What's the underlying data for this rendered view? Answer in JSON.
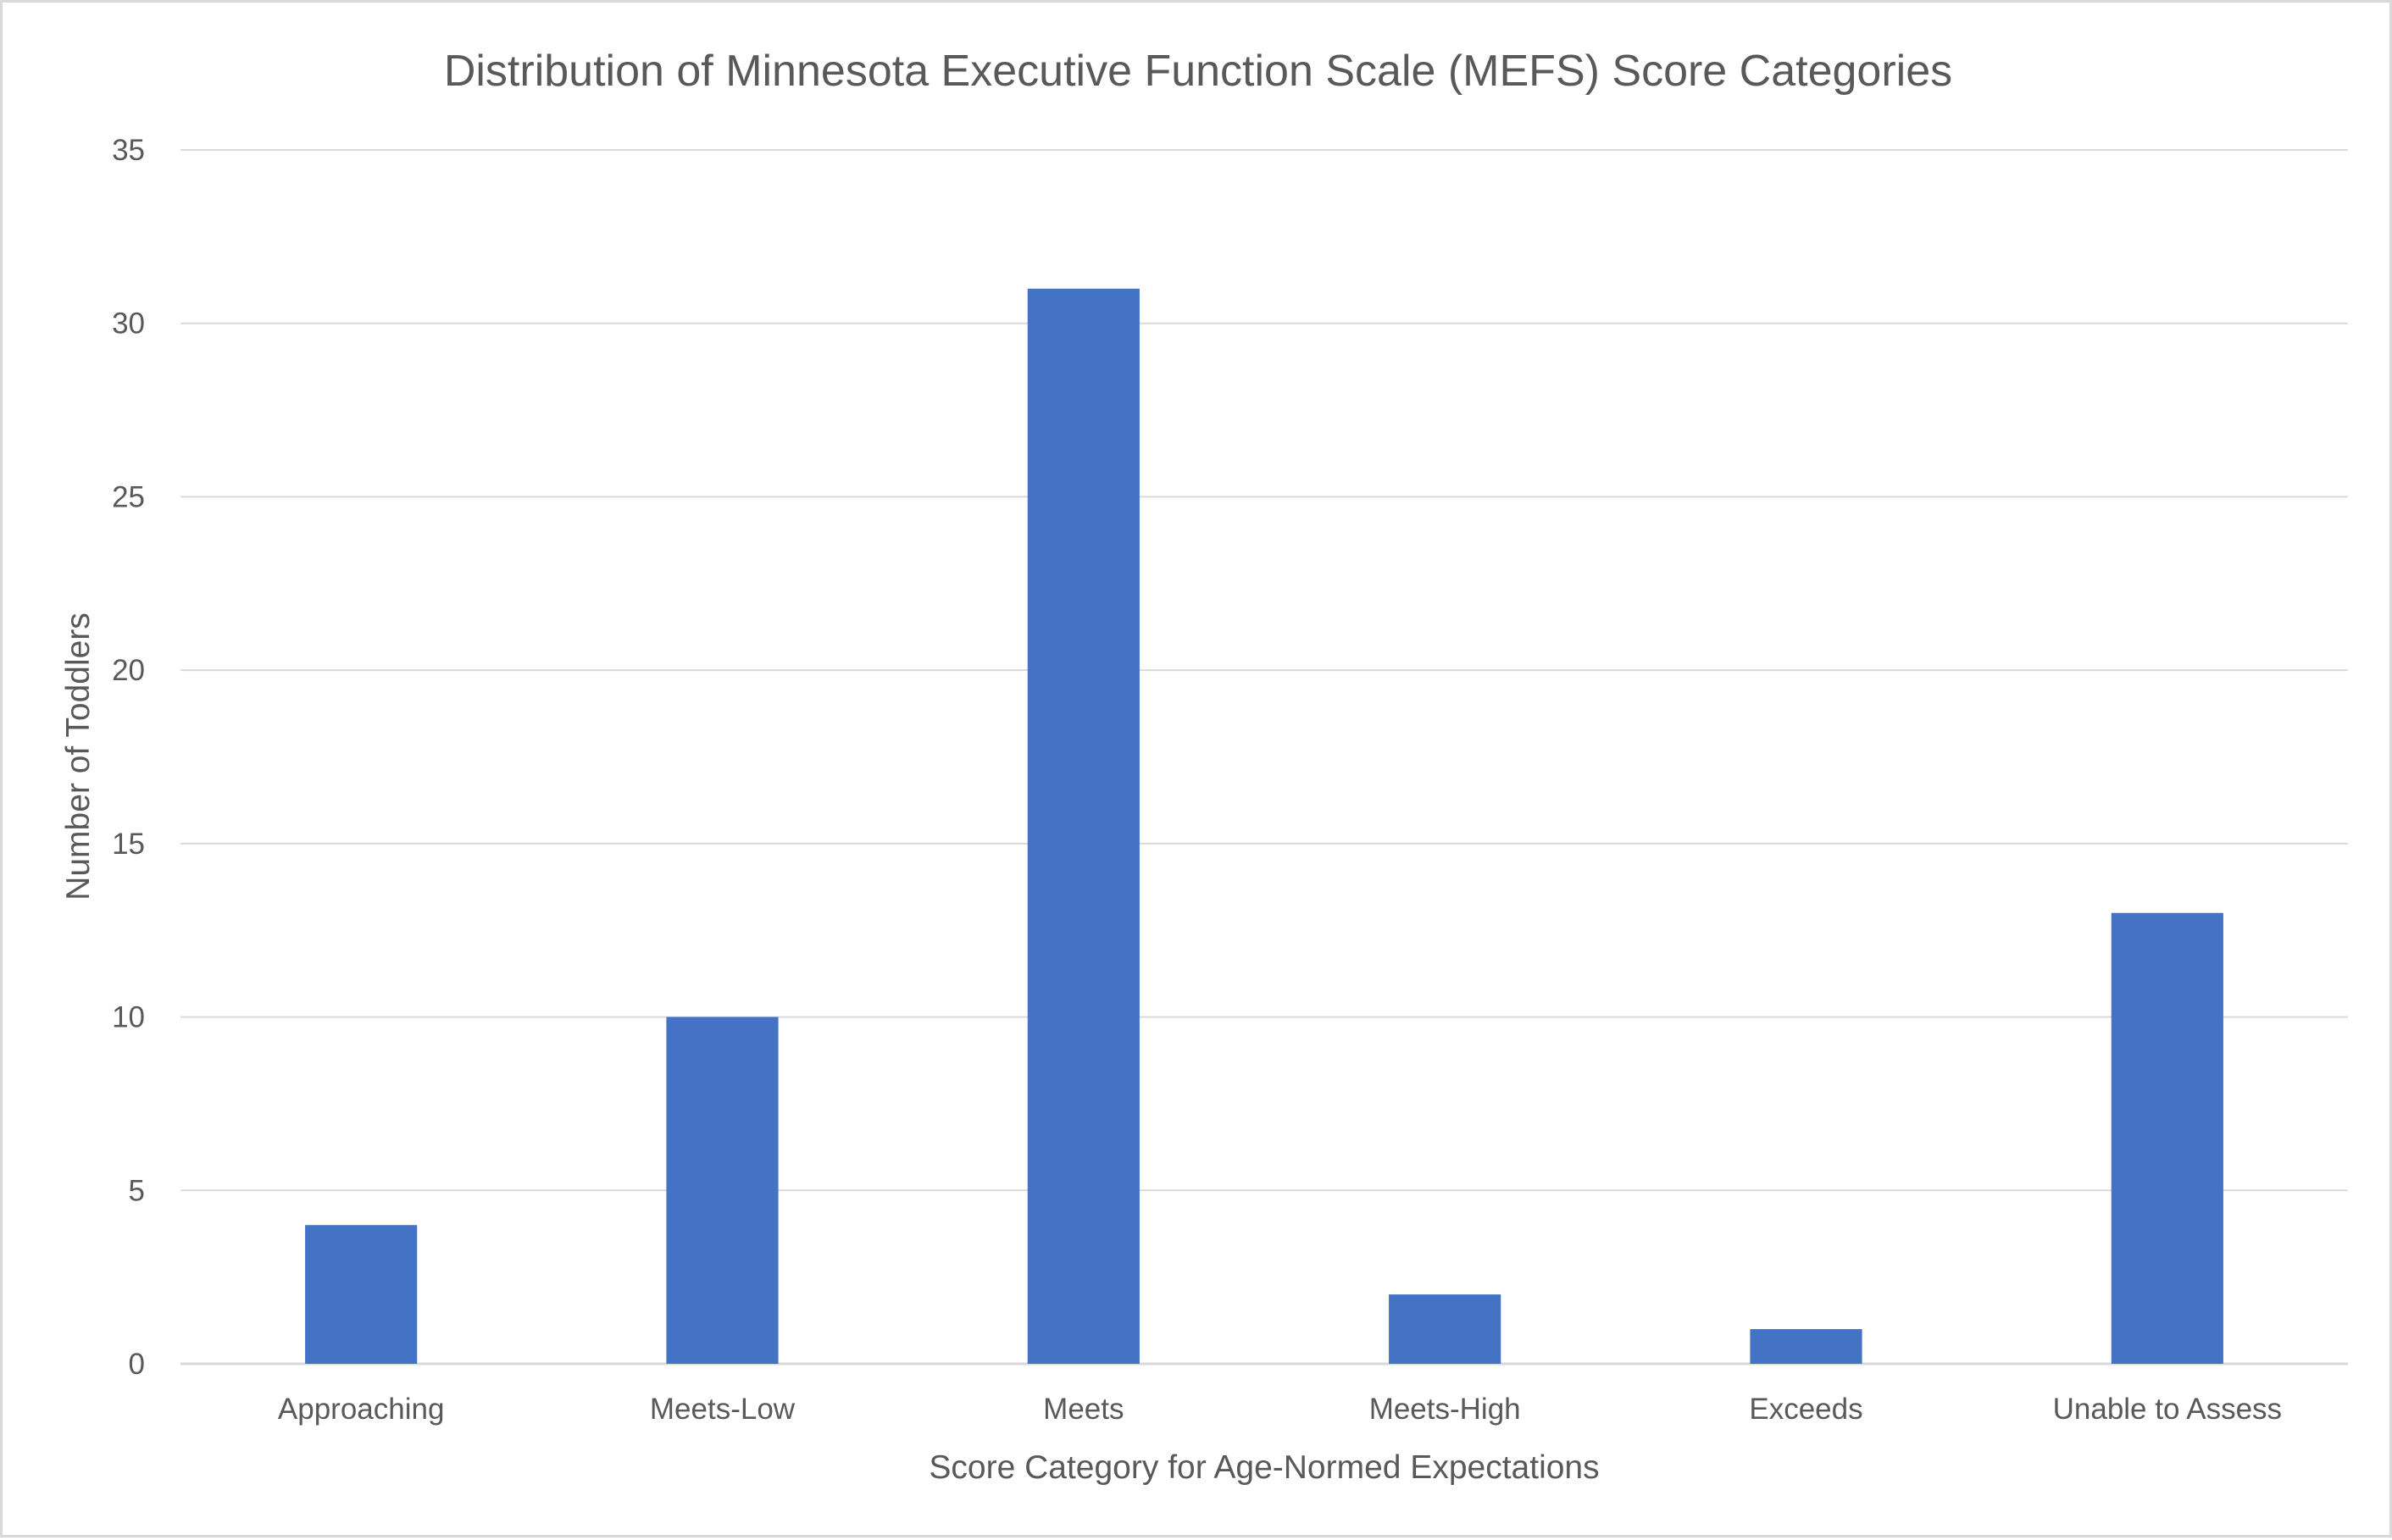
{
  "chart_data": {
    "type": "bar",
    "title": "Distribution of Minnesota Executive Function Scale (MEFS) Score Categories",
    "xlabel": "Score Category for Age-Normed Expectations",
    "ylabel": "Number of Toddlers",
    "categories": [
      "Approaching",
      "Meets-Low",
      "Meets",
      "Meets-High",
      "Exceeds",
      "Unable to Assess"
    ],
    "values": [
      4,
      10,
      31,
      2,
      1,
      13
    ],
    "ylim": [
      0,
      35
    ],
    "yticks": [
      0,
      5,
      10,
      15,
      20,
      25,
      30,
      35
    ],
    "grid": true,
    "legend": "none",
    "colors": {
      "bar": "#4472c4",
      "grid": "#d9d9d9",
      "text": "#595959"
    }
  }
}
